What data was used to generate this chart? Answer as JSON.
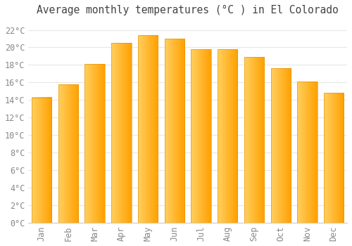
{
  "title": "Average monthly temperatures (°C ) in El Colorado",
  "months": [
    "Jan",
    "Feb",
    "Mar",
    "Apr",
    "May",
    "Jun",
    "Jul",
    "Aug",
    "Sep",
    "Oct",
    "Nov",
    "Dec"
  ],
  "values": [
    14.3,
    15.8,
    18.1,
    20.5,
    21.4,
    21.0,
    19.8,
    19.8,
    18.9,
    17.6,
    16.1,
    14.8
  ],
  "bar_color_left": "#FFD060",
  "bar_color_right": "#FFA000",
  "background_color": "#FFFFFF",
  "grid_color": "#E8E8E8",
  "tick_label_color": "#888888",
  "title_color": "#444444",
  "ylim": [
    0,
    23
  ],
  "ytick_step": 2,
  "title_fontsize": 10.5,
  "tick_fontsize": 8.5,
  "font_family": "monospace",
  "bar_width": 0.75,
  "figsize": [
    5.0,
    3.5
  ],
  "dpi": 100
}
